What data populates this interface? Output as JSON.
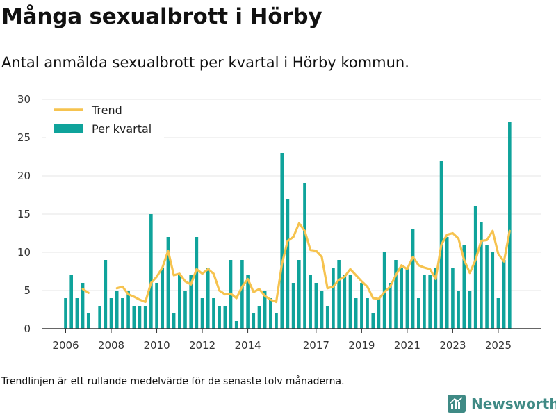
{
  "title": "Många sexualbrott i Hörby",
  "subtitle": "Antal anmälda sexualbrott per kvartal i Hörby kommun.",
  "footnote": "Trendlinjen är ett rullande medelvärde för de senaste tolv månaderna.",
  "brand": {
    "name": "Newsworthy",
    "icon": "bar-chart-logo-icon",
    "color": "#3f8a85"
  },
  "chart_data": {
    "type": "bar",
    "ylim": [
      0,
      30
    ],
    "yticks": [
      0,
      5,
      10,
      15,
      20,
      25,
      30
    ],
    "x_start": "2006-Q1",
    "xticks": [
      {
        "label": "2006",
        "quarter_index": 0
      },
      {
        "label": "2008",
        "quarter_index": 8
      },
      {
        "label": "2010",
        "quarter_index": 16
      },
      {
        "label": "2012",
        "quarter_index": 24
      },
      {
        "label": "2014",
        "quarter_index": 32
      },
      {
        "label": "2017",
        "quarter_index": 44
      },
      {
        "label": "2019",
        "quarter_index": 52
      },
      {
        "label": "2021",
        "quarter_index": 60
      },
      {
        "label": "2023",
        "quarter_index": 68
      },
      {
        "label": "2025",
        "quarter_index": 76
      }
    ],
    "legend": {
      "position": "top-left",
      "entries": [
        "Trend",
        "Per kvartal"
      ]
    },
    "colors": {
      "bars": "#0fa39b",
      "trend": "#f6c34f",
      "grid": "#e4e4e4",
      "axis": "#333333"
    },
    "series": [
      {
        "name": "Per kvartal",
        "kind": "bar",
        "values": [
          4,
          7,
          4,
          6,
          2,
          null,
          3,
          9,
          4,
          5,
          4,
          5,
          3,
          3,
          3,
          15,
          6,
          8,
          12,
          2,
          7,
          5,
          7,
          12,
          4,
          8,
          4,
          3,
          3,
          9,
          1,
          9,
          7,
          2,
          3,
          5,
          4,
          2,
          23,
          17,
          6,
          9,
          19,
          7,
          6,
          5,
          3,
          8,
          9,
          7,
          7,
          4,
          6,
          4,
          2,
          4,
          10,
          6,
          9,
          8,
          8,
          13,
          4,
          7,
          7,
          8,
          22,
          12,
          8,
          5,
          11,
          5,
          16,
          14,
          11,
          10,
          4,
          9,
          27
        ]
      },
      {
        "name": "Trend",
        "kind": "line",
        "segments": [
          {
            "start_index": 3,
            "values": [
              5.2,
              4.7
            ]
          },
          {
            "start_index": 9,
            "values": [
              5.3,
              5.5,
              4.5,
              4.2,
              3.8,
              3.5,
              6.0,
              6.8,
              8.0,
              10.2,
              7.0,
              7.2,
              6.2,
              5.8,
              7.8,
              7.2,
              7.8,
              7.2,
              5.0,
              4.5,
              4.6,
              4.0,
              5.5,
              6.5,
              4.8,
              5.2,
              4.3,
              3.8,
              3.5,
              8.5,
              11.5,
              12.0,
              13.8,
              12.8,
              10.3,
              10.2,
              9.4,
              5.3,
              5.5,
              6.4,
              6.8,
              7.8,
              7.0,
              6.2,
              5.5,
              4.0,
              3.9,
              4.8,
              5.5,
              7.0,
              8.3,
              7.8,
              9.4,
              8.3,
              8.0,
              7.8,
              6.5,
              11.0,
              12.3,
              12.5,
              11.8,
              9.0,
              7.3,
              9.0,
              11.5,
              11.6,
              12.8,
              9.8,
              8.8,
              12.8
            ]
          }
        ]
      }
    ]
  }
}
